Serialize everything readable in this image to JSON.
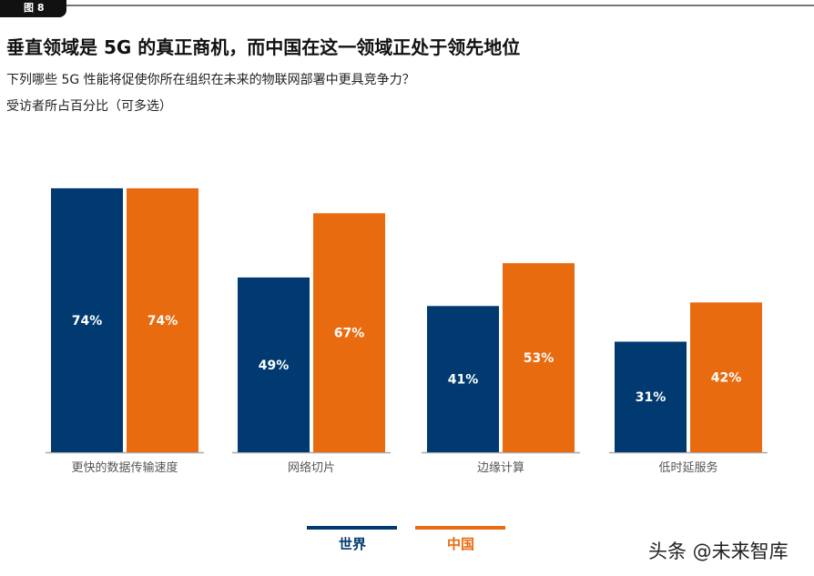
{
  "figure_label": "图 8",
  "title": "垂直领域是 5G 的真正商机，而中国在这一领域正处于领先地位",
  "subtitle": "下列哪些 5G 性能将促使你所在组织在未来的物联网部署中更具竞争力？",
  "note": "受访者所占百分比（可多选）",
  "watermark": "头条 @未来智库",
  "chart_data": {
    "type": "bar",
    "categories": [
      "更快的数据传输速度",
      "网络切片",
      "边缘计算",
      "低时延服务"
    ],
    "series": [
      {
        "name": "世界",
        "color": "#003a70",
        "values": [
          74,
          49,
          41,
          31
        ]
      },
      {
        "name": "中国",
        "color": "#e96b10",
        "values": [
          74,
          67,
          53,
          42
        ]
      }
    ],
    "value_format": "percent",
    "ylim": [
      0,
      100
    ],
    "grid": false,
    "legend": "bottom"
  }
}
